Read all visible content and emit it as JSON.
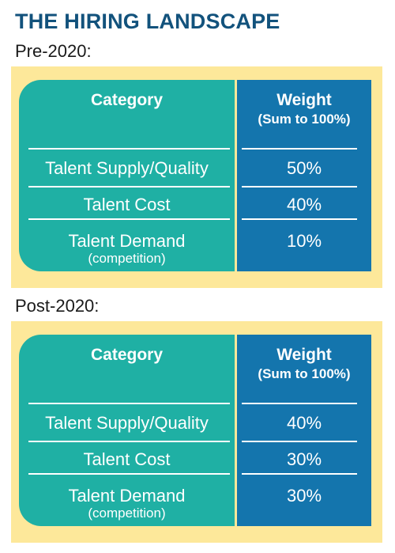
{
  "title": "THE HIRING LANDSCAPE",
  "tables": [
    {
      "label": "Pre-2020:",
      "header": {
        "category": "Category",
        "weight": "Weight",
        "weight_note": "(Sum to 100%)"
      },
      "rows": [
        {
          "category": "Talent Supply/Quality",
          "note": "",
          "weight": "50%"
        },
        {
          "category": "Talent Cost",
          "note": "",
          "weight": "40%"
        },
        {
          "category": "Talent Demand",
          "note": "(competition)",
          "weight": "10%"
        }
      ]
    },
    {
      "label": "Post-2020:",
      "header": {
        "category": "Category",
        "weight": "Weight",
        "weight_note": "(Sum to 100%)"
      },
      "rows": [
        {
          "category": "Talent Supply/Quality",
          "note": "",
          "weight": "40%"
        },
        {
          "category": "Talent Cost",
          "note": "",
          "weight": "30%"
        },
        {
          "category": "Talent Demand",
          "note": "(competition)",
          "weight": "30%"
        }
      ]
    }
  ],
  "colors": {
    "title": "#12527c",
    "panel": "#fde89a",
    "category_column": "#1fb0a4",
    "weight_column": "#1475ad",
    "cell_text": "#ffffff"
  }
}
